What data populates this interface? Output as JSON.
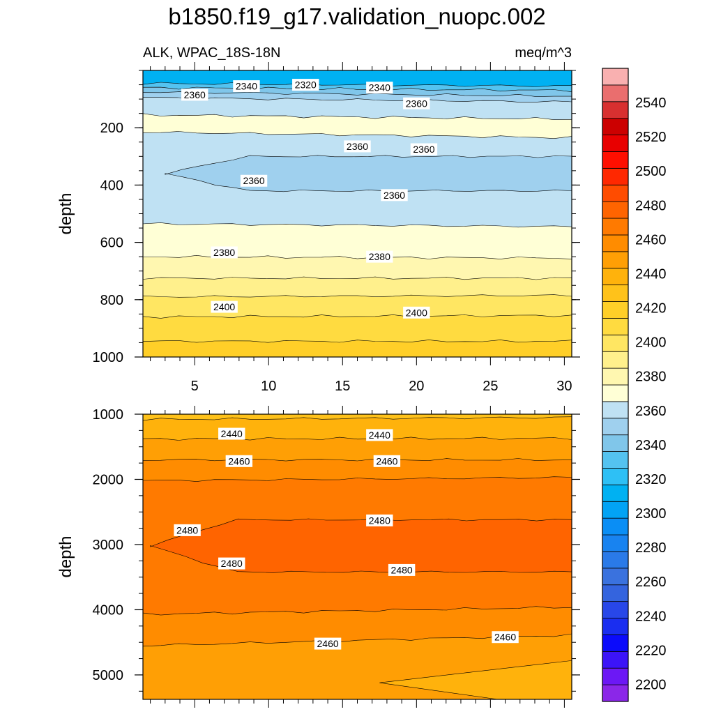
{
  "title": "b1850.f19_g17.validation_nuopc.002",
  "left_string": "ALK, WPAC_18S-18N",
  "right_string": "meq/m^3",
  "chart_data": [
    {
      "type": "heatmap",
      "panel": "upper",
      "variable": "ALK",
      "region": "WPAC_18S-18N",
      "units": "meq/m^3",
      "xlabel": "",
      "ylabel": "depth",
      "xlim": [
        1.5,
        30.5
      ],
      "ylim": [
        0,
        1000
      ],
      "y_reversed": true,
      "x_ticks": [
        5,
        10,
        15,
        20,
        25,
        30
      ],
      "y_ticks": [
        200,
        400,
        600,
        800,
        1000
      ],
      "bands": [
        {
          "top_left": 0,
          "top_right": 0,
          "value": 2310
        },
        {
          "top_left": 45,
          "top_right": 55,
          "value": 2330
        },
        {
          "top_left": 60,
          "top_right": 70,
          "value": 2340
        },
        {
          "top_left": 75,
          "top_right": 90,
          "value": 2350
        },
        {
          "top_left": 95,
          "top_right": 110,
          "value": 2360
        },
        {
          "top_left": 155,
          "top_right": 170,
          "value": 2375
        },
        {
          "top_left": 215,
          "top_right": 235,
          "value": 2360
        },
        {
          "top_left": 535,
          "top_right": 545,
          "value": 2375
        },
        {
          "top_left": 650,
          "top_right": 655,
          "value": 2385
        },
        {
          "top_left": 725,
          "top_right": 725,
          "value": 2395
        },
        {
          "top_left": 790,
          "top_right": 785,
          "value": 2405
        },
        {
          "top_left": 860,
          "top_right": 855,
          "value": 2410
        },
        {
          "top_left": 945,
          "top_right": 945,
          "value": 2420
        }
      ],
      "core": {
        "value": 2355,
        "x_start": 3.0,
        "y_top": 300,
        "y_bottom": 420
      },
      "contour_labels": [
        {
          "text": "2340",
          "x": 8.5,
          "y": 55
        },
        {
          "text": "2320",
          "x": 12.5,
          "y": 50
        },
        {
          "text": "2340",
          "x": 17.5,
          "y": 60
        },
        {
          "text": "2360",
          "x": 5.0,
          "y": 85
        },
        {
          "text": "2360",
          "x": 20.0,
          "y": 115
        },
        {
          "text": "2360",
          "x": 16.0,
          "y": 265
        },
        {
          "text": "2360",
          "x": 20.5,
          "y": 275
        },
        {
          "text": "2360",
          "x": 9.0,
          "y": 385
        },
        {
          "text": "2360",
          "x": 18.5,
          "y": 435
        },
        {
          "text": "2380",
          "x": 7.0,
          "y": 635
        },
        {
          "text": "2380",
          "x": 17.5,
          "y": 650
        },
        {
          "text": "2400",
          "x": 7.0,
          "y": 825
        },
        {
          "text": "2400",
          "x": 20.0,
          "y": 845
        }
      ]
    },
    {
      "type": "heatmap",
      "panel": "lower",
      "variable": "ALK",
      "region": "WPAC_18S-18N",
      "units": "meq/m^3",
      "xlabel": "",
      "ylabel": "depth",
      "xlim": [
        1.5,
        30.5
      ],
      "ylim": [
        1000,
        5375
      ],
      "y_reversed": true,
      "y_ticks": [
        1000,
        2000,
        3000,
        4000,
        5000
      ],
      "bands": [
        {
          "top_left": 1000,
          "top_right": 1000,
          "value": 2435
        },
        {
          "top_left": 1080,
          "top_right": 1050,
          "value": 2445
        },
        {
          "top_left": 1380,
          "top_right": 1370,
          "value": 2455
        },
        {
          "top_left": 1700,
          "top_right": 1700,
          "value": 2465
        },
        {
          "top_left": 2020,
          "top_right": 1970,
          "value": 2475
        },
        {
          "top_left": 4070,
          "top_right": 3960,
          "value": 2465
        },
        {
          "top_left": 4550,
          "top_right": 4390,
          "value": 2455
        }
      ],
      "core": {
        "value": 2485,
        "x_start": 2.0,
        "y_top": 2620,
        "y_bottom": 3420
      },
      "wedge": {
        "value": 2445,
        "x_start": 17.5,
        "y_at_start": 5120
      },
      "contour_labels": [
        {
          "text": "2440",
          "x": 7.5,
          "y": 1300
        },
        {
          "text": "2440",
          "x": 17.5,
          "y": 1320
        },
        {
          "text": "2460",
          "x": 8.0,
          "y": 1720
        },
        {
          "text": "2460",
          "x": 18.0,
          "y": 1720
        },
        {
          "text": "2480",
          "x": 4.5,
          "y": 2780
        },
        {
          "text": "2480",
          "x": 17.5,
          "y": 2630
        },
        {
          "text": "2480",
          "x": 7.5,
          "y": 3290
        },
        {
          "text": "2480",
          "x": 19.0,
          "y": 3390
        },
        {
          "text": "2460",
          "x": 14.0,
          "y": 4520
        },
        {
          "text": "2460",
          "x": 26.0,
          "y": 4420
        }
      ]
    }
  ],
  "colorbar": {
    "levels": [
      2190,
      2200,
      2210,
      2220,
      2230,
      2240,
      2250,
      2260,
      2270,
      2280,
      2290,
      2300,
      2310,
      2320,
      2330,
      2340,
      2350,
      2360,
      2370,
      2380,
      2390,
      2400,
      2410,
      2420,
      2430,
      2440,
      2450,
      2460,
      2470,
      2480,
      2490,
      2500,
      2510,
      2520,
      2530,
      2540,
      2550,
      2560
    ],
    "label_values": [
      2200,
      2220,
      2240,
      2260,
      2280,
      2300,
      2320,
      2340,
      2360,
      2380,
      2400,
      2420,
      2440,
      2460,
      2480,
      2500,
      2520,
      2540
    ],
    "colors": [
      "#8b27e8",
      "#6c18f5",
      "#3c14f8",
      "#0b0bfb",
      "#1a2ef0",
      "#2847e8",
      "#3464de",
      "#3a72de",
      "#2a7ae8",
      "#1883f0",
      "#0a8ef5",
      "#02a3f5",
      "#00b1f2",
      "#2ec0f5",
      "#54c3f0",
      "#80c6ea",
      "#9fd0ee",
      "#bfe1f3",
      "#ffffd6",
      "#fff7b0",
      "#fff08c",
      "#ffe662",
      "#ffdb40",
      "#ffcf28",
      "#ffc21a",
      "#ffb20c",
      "#ff9f05",
      "#ff8c00",
      "#ff7a00",
      "#ff6400",
      "#ff4c00",
      "#ff2800",
      "#ff0f00",
      "#e80000",
      "#cc0000",
      "#d83030",
      "#ea6e6e",
      "#f9b0b0"
    ]
  }
}
